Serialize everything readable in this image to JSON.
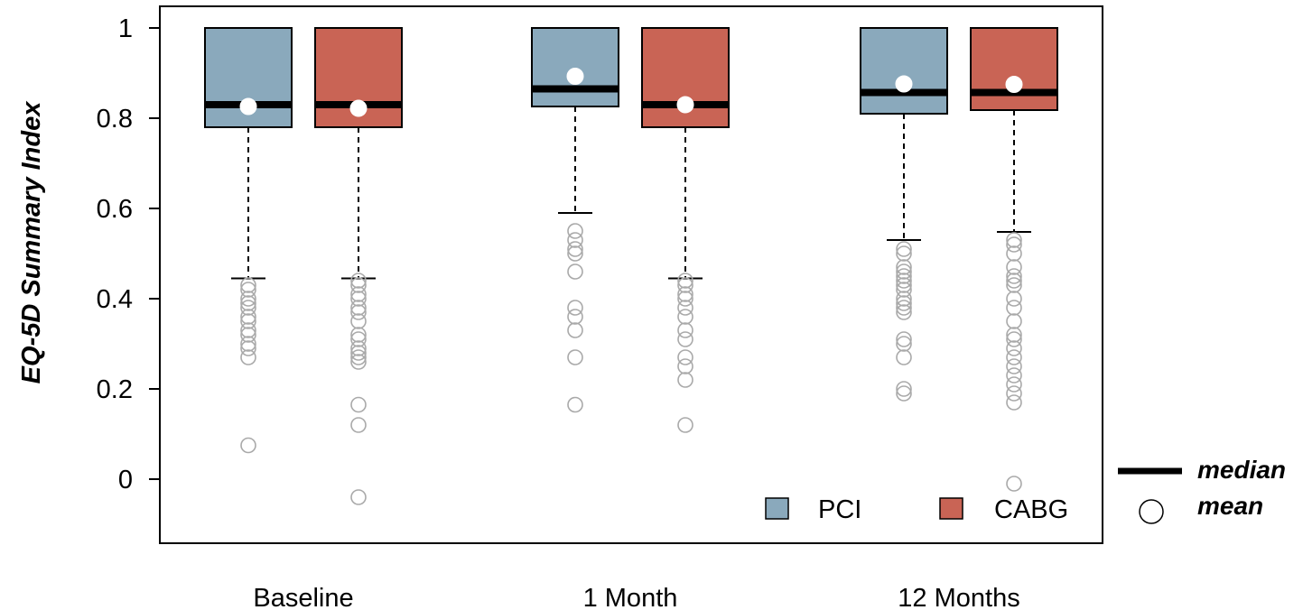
{
  "chart_data": {
    "type": "boxplot",
    "title": "",
    "xlabel": "",
    "ylabel": "EQ-5D Summary Index",
    "ylim": [
      -0.14,
      1.05
    ],
    "yticks": [
      0,
      0.2,
      0.4,
      0.6,
      0.8,
      1
    ],
    "ytick_labels": [
      "0",
      "0.2",
      "0.4",
      "0.6",
      "0.8",
      "1"
    ],
    "categories": [
      "Baseline",
      "1 Month",
      "12 Months"
    ],
    "grid": false,
    "legend_position": "bottom-right",
    "series": [
      {
        "name": "PCI",
        "color": "#8aa9bc",
        "boxes": [
          {
            "q1": 0.78,
            "median": 0.83,
            "q3": 1.0,
            "mean": 0.826,
            "whisker_low": 0.445,
            "whisker_high": 1.0,
            "outliers": [
              0.43,
              0.42,
              0.4,
              0.39,
              0.38,
              0.36,
              0.35,
              0.33,
              0.32,
              0.3,
              0.29,
              0.27,
              0.075
            ]
          },
          {
            "q1": 0.826,
            "median": 0.865,
            "q3": 1.0,
            "mean": 0.893,
            "whisker_low": 0.59,
            "whisker_high": 1.0,
            "outliers": [
              0.55,
              0.53,
              0.51,
              0.5,
              0.46,
              0.38,
              0.36,
              0.33,
              0.27,
              0.165
            ]
          },
          {
            "q1": 0.81,
            "median": 0.857,
            "q3": 1.0,
            "mean": 0.876,
            "whisker_low": 0.53,
            "whisker_high": 1.0,
            "outliers": [
              0.51,
              0.5,
              0.47,
              0.46,
              0.45,
              0.44,
              0.43,
              0.42,
              0.4,
              0.39,
              0.38,
              0.37,
              0.31,
              0.3,
              0.27,
              0.2,
              0.19
            ]
          }
        ]
      },
      {
        "name": "CABG",
        "color": "#c96455",
        "boxes": [
          {
            "q1": 0.78,
            "median": 0.83,
            "q3": 1.0,
            "mean": 0.822,
            "whisker_low": 0.445,
            "whisker_high": 1.0,
            "outliers": [
              0.44,
              0.43,
              0.41,
              0.4,
              0.38,
              0.37,
              0.35,
              0.32,
              0.31,
              0.29,
              0.28,
              0.27,
              0.26,
              0.165,
              0.12,
              -0.04
            ]
          },
          {
            "q1": 0.78,
            "median": 0.83,
            "q3": 1.0,
            "mean": 0.83,
            "whisker_low": 0.445,
            "whisker_high": 1.0,
            "outliers": [
              0.44,
              0.43,
              0.41,
              0.4,
              0.38,
              0.36,
              0.33,
              0.31,
              0.27,
              0.25,
              0.22,
              0.12
            ]
          },
          {
            "q1": 0.818,
            "median": 0.857,
            "q3": 1.0,
            "mean": 0.875,
            "whisker_low": 0.548,
            "whisker_high": 1.0,
            "outliers": [
              0.53,
              0.52,
              0.5,
              0.47,
              0.45,
              0.44,
              0.43,
              0.4,
              0.38,
              0.35,
              0.32,
              0.31,
              0.29,
              0.27,
              0.25,
              0.23,
              0.21,
              0.19,
              0.17,
              -0.01
            ]
          }
        ]
      }
    ],
    "key": {
      "median_label": "median",
      "mean_label": "mean"
    }
  }
}
